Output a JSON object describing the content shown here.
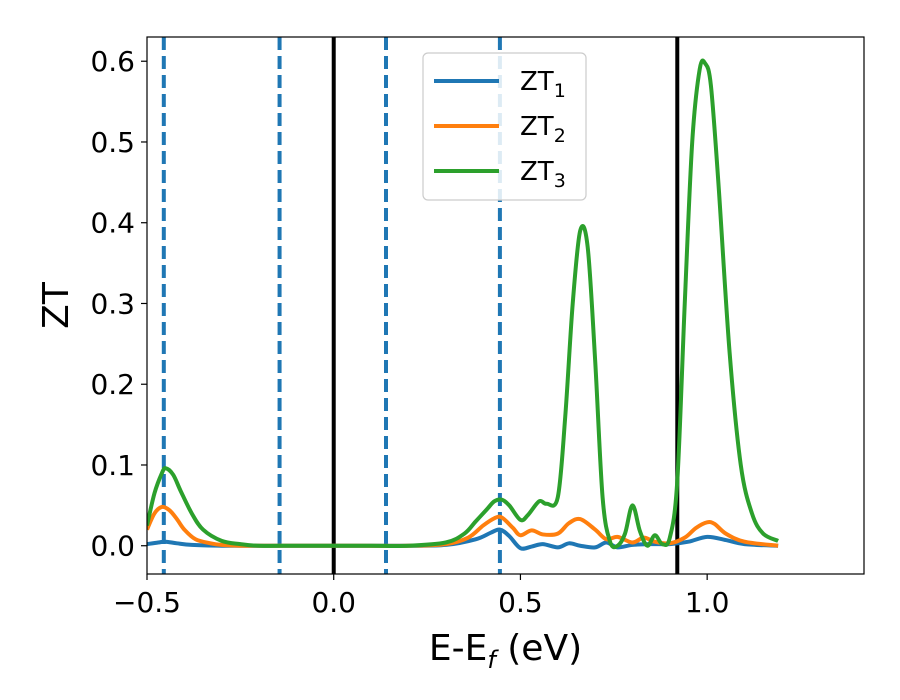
{
  "chart_data": {
    "type": "line",
    "title": "",
    "xlabel": "E-E",
    "xlabel_sub": "f",
    "xlabel_unit": " (eV)",
    "ylabel": "ZT",
    "xlim": [
      -0.5,
      1.42
    ],
    "ylim": [
      -0.035,
      0.63
    ],
    "xticks": [
      -0.5,
      0.0,
      0.5,
      1.0
    ],
    "xtick_labels": [
      "−0.5",
      "0.0",
      "0.5",
      "1.0"
    ],
    "yticks": [
      0.0,
      0.1,
      0.2,
      0.3,
      0.4,
      0.5,
      0.6
    ],
    "ytick_labels": [
      "0.0",
      "0.1",
      "0.2",
      "0.3",
      "0.4",
      "0.5",
      "0.6"
    ],
    "grid": false,
    "legend_position": "top-center",
    "vertical_lines": [
      {
        "x": -0.455,
        "style": "dashed",
        "color": "#1f77b4"
      },
      {
        "x": -0.145,
        "style": "dashed",
        "color": "#1f77b4"
      },
      {
        "x": 0.0,
        "style": "solid",
        "color": "#000000"
      },
      {
        "x": 0.14,
        "style": "dashed",
        "color": "#1f77b4"
      },
      {
        "x": 0.445,
        "style": "dashed",
        "color": "#1f77b4"
      },
      {
        "x": 0.92,
        "style": "solid",
        "color": "#000000"
      }
    ],
    "series": [
      {
        "name": "ZT",
        "subscript": "1",
        "color": "#1f77b4",
        "x": [
          -0.5,
          -0.47,
          -0.45,
          -0.42,
          -0.38,
          -0.3,
          -0.2,
          0.0,
          0.2,
          0.3,
          0.38,
          0.42,
          0.445,
          0.47,
          0.5,
          0.53,
          0.56,
          0.6,
          0.63,
          0.66,
          0.7,
          0.73,
          0.76,
          0.8,
          0.85,
          0.9,
          0.95,
          1.0,
          1.05,
          1.1,
          1.19
        ],
        "y": [
          0.002,
          0.004,
          0.005,
          0.003,
          0.001,
          0.0,
          0.0,
          0.0,
          0.0,
          0.001,
          0.008,
          0.016,
          0.02,
          0.012,
          -0.003,
          -0.001,
          0.002,
          -0.002,
          0.003,
          0.0,
          -0.002,
          0.004,
          -0.002,
          0.001,
          0.002,
          0.002,
          0.005,
          0.011,
          0.007,
          0.002,
          0.0
        ]
      },
      {
        "name": "ZT",
        "subscript": "2",
        "color": "#ff7f0e",
        "x": [
          -0.5,
          -0.48,
          -0.46,
          -0.44,
          -0.42,
          -0.4,
          -0.37,
          -0.33,
          -0.3,
          -0.25,
          -0.2,
          0.0,
          0.2,
          0.3,
          0.36,
          0.4,
          0.43,
          0.45,
          0.48,
          0.5,
          0.53,
          0.56,
          0.6,
          0.63,
          0.66,
          0.7,
          0.73,
          0.76,
          0.8,
          0.83,
          0.86,
          0.9,
          0.94,
          0.97,
          1.0,
          1.02,
          1.05,
          1.1,
          1.19
        ],
        "y": [
          0.02,
          0.04,
          0.048,
          0.044,
          0.033,
          0.02,
          0.008,
          0.003,
          0.001,
          0.0,
          0.0,
          0.0,
          0.0,
          0.002,
          0.01,
          0.025,
          0.034,
          0.035,
          0.022,
          0.013,
          0.019,
          0.014,
          0.015,
          0.028,
          0.033,
          0.02,
          0.008,
          0.011,
          0.004,
          0.01,
          0.005,
          0.003,
          0.01,
          0.022,
          0.029,
          0.027,
          0.015,
          0.005,
          0.0
        ]
      },
      {
        "name": "ZT",
        "subscript": "3",
        "color": "#2ca02c",
        "x": [
          -0.5,
          -0.48,
          -0.46,
          -0.45,
          -0.43,
          -0.41,
          -0.38,
          -0.35,
          -0.3,
          -0.25,
          -0.2,
          -0.1,
          0.0,
          0.1,
          0.2,
          0.3,
          0.35,
          0.38,
          0.41,
          0.43,
          0.45,
          0.47,
          0.5,
          0.52,
          0.55,
          0.57,
          0.6,
          0.62,
          0.64,
          0.66,
          0.68,
          0.7,
          0.72,
          0.74,
          0.76,
          0.78,
          0.8,
          0.82,
          0.84,
          0.86,
          0.88,
          0.9,
          0.92,
          0.94,
          0.96,
          0.98,
          0.995,
          1.01,
          1.03,
          1.06,
          1.09,
          1.12,
          1.15,
          1.19
        ],
        "y": [
          0.025,
          0.065,
          0.09,
          0.096,
          0.088,
          0.068,
          0.04,
          0.02,
          0.006,
          0.002,
          0.0,
          0.0,
          0.0,
          0.0,
          0.0,
          0.004,
          0.015,
          0.03,
          0.045,
          0.055,
          0.057,
          0.05,
          0.032,
          0.038,
          0.055,
          0.052,
          0.06,
          0.16,
          0.3,
          0.39,
          0.37,
          0.23,
          0.06,
          0.005,
          0.0,
          0.015,
          0.05,
          0.018,
          0.0,
          0.013,
          0.002,
          0.01,
          0.08,
          0.3,
          0.5,
          0.59,
          0.597,
          0.57,
          0.45,
          0.24,
          0.1,
          0.04,
          0.015,
          0.006
        ]
      }
    ]
  }
}
